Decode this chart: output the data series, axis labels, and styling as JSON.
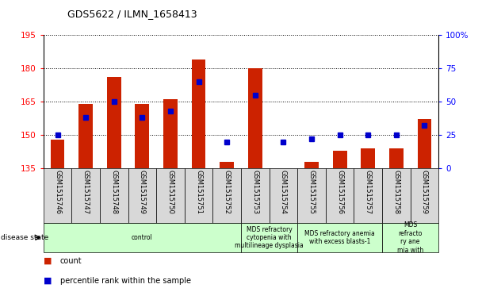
{
  "title": "GDS5622 / ILMN_1658413",
  "samples": [
    "GSM1515746",
    "GSM1515747",
    "GSM1515748",
    "GSM1515749",
    "GSM1515750",
    "GSM1515751",
    "GSM1515752",
    "GSM1515753",
    "GSM1515754",
    "GSM1515755",
    "GSM1515756",
    "GSM1515757",
    "GSM1515758",
    "GSM1515759"
  ],
  "bar_values": [
    148,
    164,
    176,
    164,
    166,
    184,
    138,
    180,
    135,
    138,
    143,
    144,
    144,
    157
  ],
  "percentile_values": [
    25,
    38,
    50,
    38,
    43,
    65,
    20,
    55,
    20,
    22,
    25,
    25,
    25,
    32
  ],
  "ylim_left": [
    135,
    195
  ],
  "ylim_right": [
    0,
    100
  ],
  "yticks_left": [
    135,
    150,
    165,
    180,
    195
  ],
  "yticks_right": [
    0,
    25,
    50,
    75,
    100
  ],
  "bar_color": "#cc2200",
  "dot_color": "#0000cc",
  "group_boundaries": [
    [
      0,
      7,
      "control"
    ],
    [
      7,
      9,
      "MDS refractory\ncytopenia with\nmultilineage dysplasia"
    ],
    [
      9,
      12,
      "MDS refractory anemia\nwith excess blasts-1"
    ],
    [
      12,
      14,
      "MDS\nrefracto\nry ane\nmia with"
    ]
  ],
  "group_color": "#ccffcc",
  "tick_bg_color": "#d8d8d8",
  "disease_state_label": "disease state",
  "legend_count_label": "count",
  "legend_pct_label": "percentile rank within the sample"
}
